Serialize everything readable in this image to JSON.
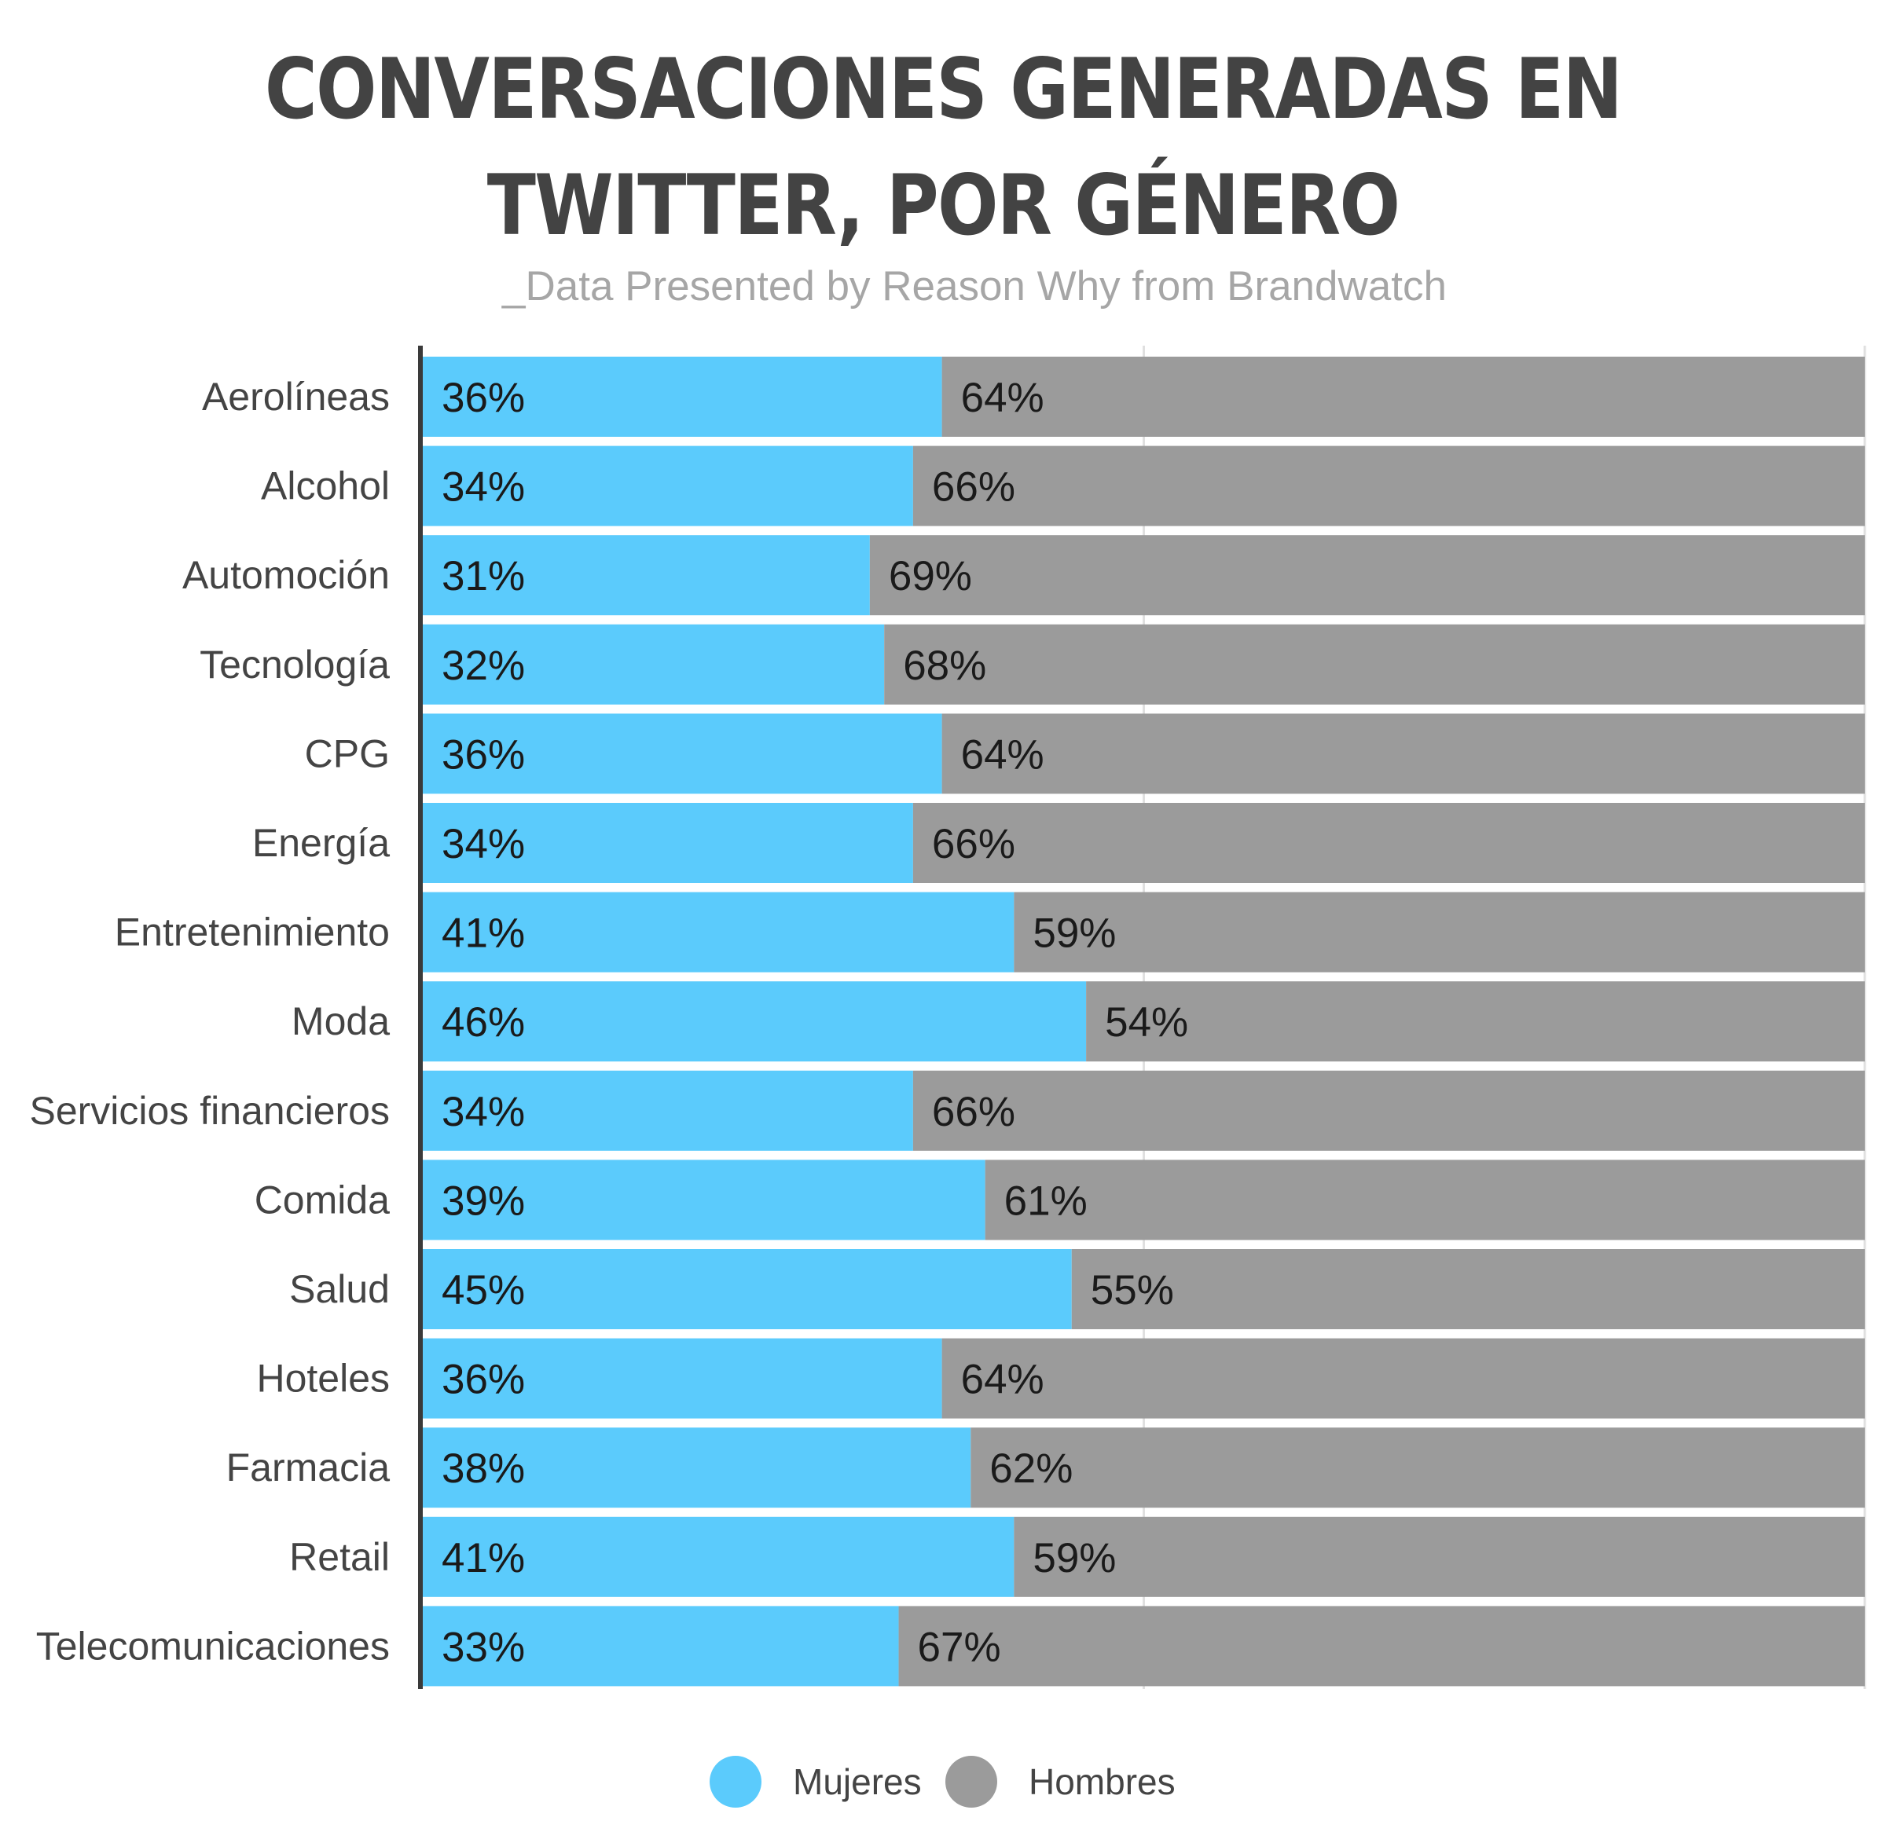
{
  "chart_data": {
    "type": "bar",
    "orientation": "horizontal",
    "stacked": true,
    "title": "CONVERSACIONES GENERADAS EN TWITTER, POR GÉNERO",
    "subtitle": "_Data Presented by Reason Why from Brandwatch",
    "xlim": [
      0,
      100
    ],
    "grid": true,
    "legend_position": "bottom",
    "categories": [
      "Aerolíneas",
      "Alcohol",
      "Automoción",
      "Tecnología",
      "CPG",
      "Energía",
      "Entretenimiento",
      "Moda",
      "Servicios financieros",
      "Comida",
      "Salud",
      "Hoteles",
      "Farmacia",
      "Retail",
      "Telecomunicaciones"
    ],
    "series": [
      {
        "name": "Mujeres",
        "color": "#5bcbfc",
        "values": [
          36,
          34,
          31,
          32,
          36,
          34,
          41,
          46,
          34,
          39,
          45,
          36,
          38,
          41,
          33
        ],
        "labels": [
          "36%",
          "34%",
          "31%",
          "32%",
          "36%",
          "34%",
          "41%",
          "46%",
          "34%",
          "39%",
          "45%",
          "36%",
          "38%",
          "41%",
          "33%"
        ]
      },
      {
        "name": "Hombres",
        "color": "#9b9b9b",
        "values": [
          64,
          66,
          69,
          68,
          64,
          66,
          59,
          54,
          66,
          61,
          55,
          64,
          62,
          59,
          67
        ],
        "labels": [
          "64%",
          "66%",
          "69%",
          "68%",
          "64%",
          "66%",
          "59%",
          "54%",
          "66%",
          "61%",
          "55%",
          "64%",
          "62%",
          "59%",
          "67%"
        ]
      }
    ]
  }
}
